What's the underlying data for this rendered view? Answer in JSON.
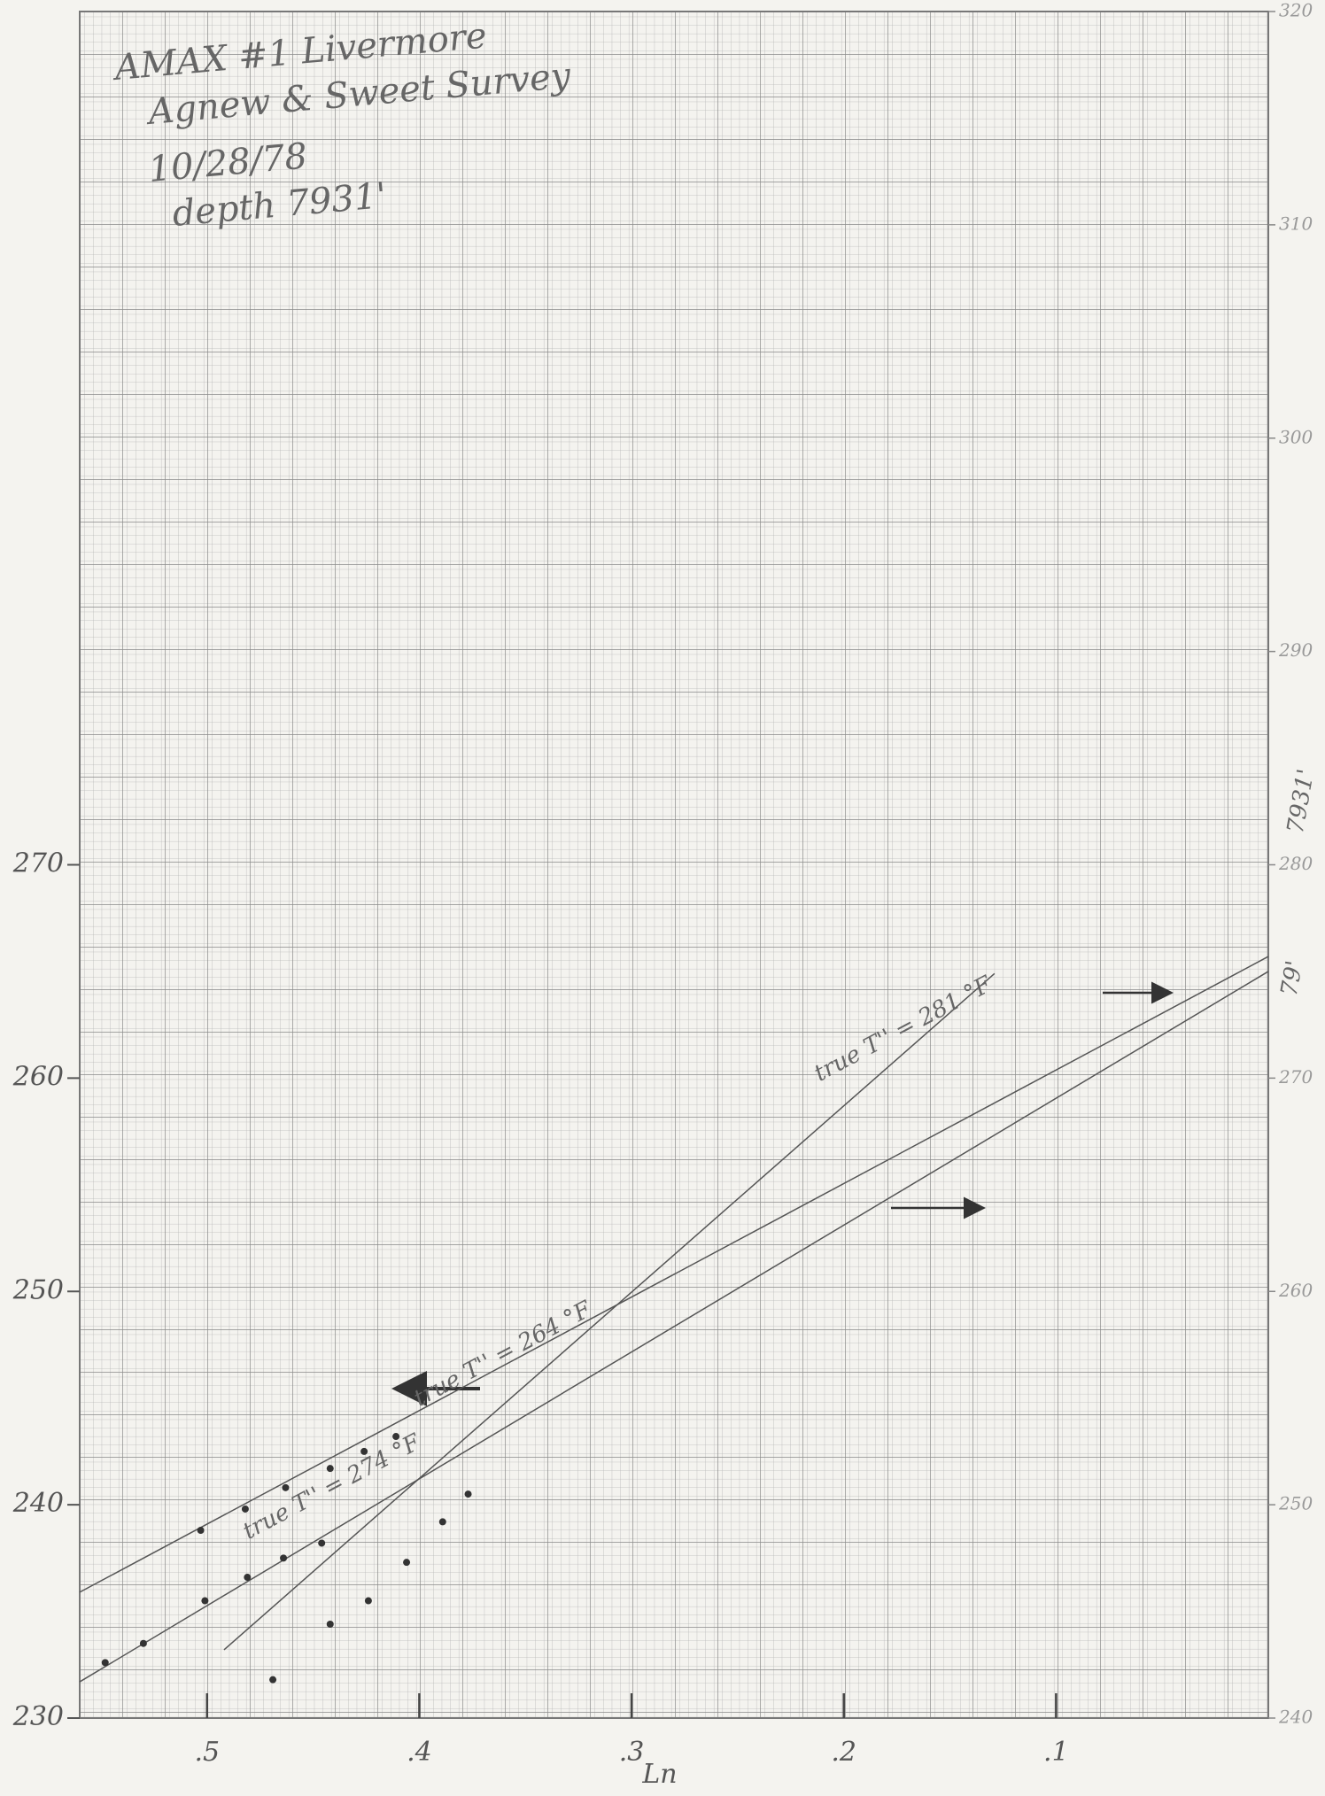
{
  "chart_data": {
    "type": "scatter",
    "title_lines": [
      "AMAX #1 Livermore",
      "Agnew & Sweet Survey",
      "10/28/78",
      "depth 7931'"
    ],
    "xlabel": "Ln",
    "xlim": [
      0.56,
      0
    ],
    "xticks": [
      {
        "value": 0.5,
        "label": ".5"
      },
      {
        "value": 0.4,
        "label": ".4"
      },
      {
        "value": 0.3,
        "label": ".3"
      },
      {
        "value": 0.2,
        "label": ".2"
      },
      {
        "value": 0.1,
        "label": ".1"
      }
    ],
    "ylim": [
      230,
      310
    ],
    "yticks": [
      230,
      240,
      250,
      260,
      270
    ],
    "y2lim": [
      240,
      320
    ],
    "y2ticks": [
      240,
      250,
      260,
      270,
      280,
      290,
      300,
      310,
      320
    ],
    "color": "#333333",
    "series": [
      {
        "x": [
          0.503,
          0.482,
          0.463,
          0.442,
          0.426,
          0.411
        ],
        "values": [
          238.8,
          239.8,
          240.8,
          241.7,
          242.5,
          243.2
        ]
      },
      {
        "x": [
          0.548,
          0.53,
          0.501,
          0.481,
          0.464,
          0.446
        ],
        "values": [
          232.6,
          233.5,
          235.5,
          236.6,
          237.5,
          238.2
        ]
      },
      {
        "x": [
          0.469,
          0.442,
          0.424,
          0.406,
          0.389,
          0.377
        ],
        "values": [
          231.8,
          234.4,
          235.5,
          237.3,
          239.2,
          240.5
        ]
      }
    ],
    "fit_lines": [
      {
        "x": [
          0.56,
          0.0
        ],
        "values": [
          235.9,
          265.7
        ]
      },
      {
        "x": [
          0.56,
          0.0
        ],
        "values": [
          231.7,
          265.0
        ]
      },
      {
        "x": [
          0.492,
          0.129
        ],
        "values": [
          233.2,
          264.9
        ]
      }
    ],
    "annotations": [
      "true T'' = 264 °F",
      "true T'' = 274 °F",
      "true T'' = 281 °F",
      "7931'",
      "79'"
    ]
  }
}
